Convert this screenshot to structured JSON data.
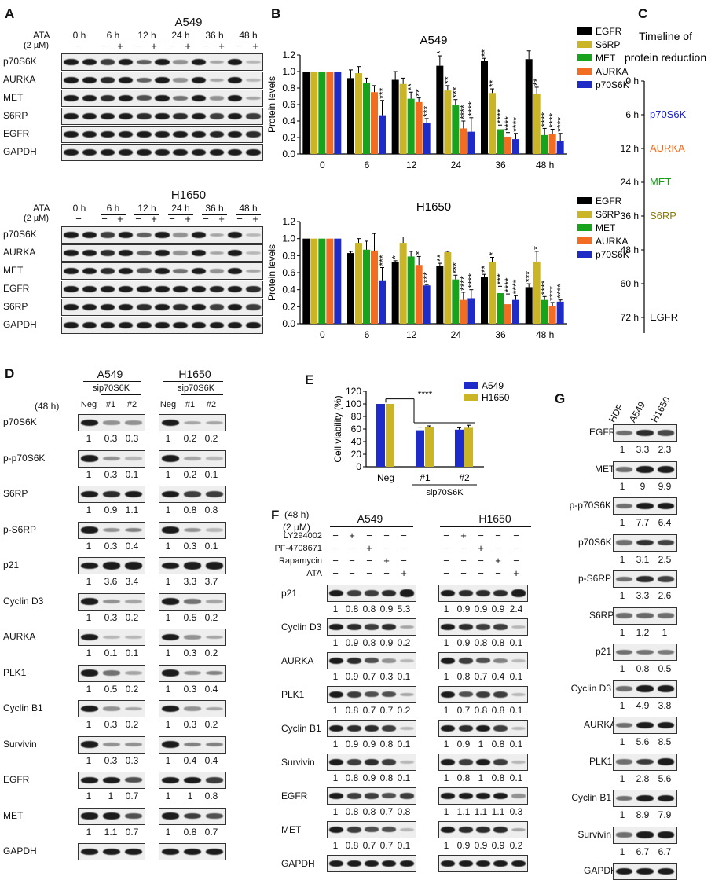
{
  "panels": {
    "A": "A",
    "B": "B",
    "C": "C",
    "D": "D",
    "E": "E",
    "F": "F",
    "G": "G"
  },
  "panel_a": {
    "ata_label": "ATA",
    "ata_dose": "(2 µM)",
    "timepoints": [
      "0 h",
      "6 h",
      "12 h",
      "24 h",
      "36 h",
      "48 h"
    ],
    "minus": "−",
    "plus": "+",
    "a549": {
      "title": "A549",
      "proteins": [
        "p70S6K",
        "AURKA",
        "MET",
        "S6RP",
        "EGFR",
        "GAPDH"
      ]
    },
    "h1650": {
      "title": "H1650",
      "proteins": [
        "p70S6K",
        "AURKA",
        "MET",
        "EGFR",
        "S6RP",
        "GAPDH"
      ]
    }
  },
  "panel_c": {
    "title_line1": "Timeline of",
    "title_line2": "protein reduction",
    "ticks": [
      "0 h",
      "6 h",
      "12 h",
      "24 h",
      "36 h",
      "48 h",
      "60 h",
      "72 h"
    ],
    "events": [
      {
        "tick": 1,
        "label": "p70S6K",
        "color": "#1a22c9"
      },
      {
        "tick": 2,
        "label": "AURKA",
        "color": "#ee6a1a"
      },
      {
        "tick": 3,
        "label": "MET",
        "color": "#16a016"
      },
      {
        "tick": 4,
        "label": "S6RP",
        "color": "#8a7a10"
      },
      {
        "tick": 7,
        "label": "EGFR",
        "color": "#111111"
      }
    ]
  },
  "chart_data": [
    {
      "type": "bar",
      "title": "A549",
      "ylabel": "Protein levels",
      "ylim": [
        0,
        1.2
      ],
      "yticks": [
        "0.0",
        "0.2",
        "0.4",
        "0.6",
        "0.8",
        "1.0",
        "1.2"
      ],
      "categories": [
        "0",
        "6",
        "12",
        "24",
        "36",
        "48 h"
      ],
      "series": [
        {
          "name": "EGFR",
          "color": "#000000",
          "values": [
            1.0,
            0.92,
            0.9,
            1.07,
            1.13,
            1.15
          ],
          "err": [
            0,
            0.1,
            0.1,
            0.12,
            0.03,
            0.1
          ],
          "sig": [
            "",
            "",
            "",
            "*",
            "**",
            ""
          ]
        },
        {
          "name": "S6RP",
          "color": "#c9b526",
          "values": [
            1.0,
            0.98,
            0.85,
            0.77,
            0.74,
            0.73
          ],
          "err": [
            0,
            0.08,
            0.07,
            0.06,
            0.05,
            0.08
          ],
          "sig": [
            "",
            "",
            "",
            "**",
            "**",
            "**"
          ]
        },
        {
          "name": "MET",
          "color": "#17a31b",
          "values": [
            1.0,
            0.86,
            0.67,
            0.59,
            0.3,
            0.23
          ],
          "err": [
            0,
            0.06,
            0.08,
            0.07,
            0.05,
            0.08
          ],
          "sig": [
            "",
            "",
            "**",
            "***",
            "****",
            "****"
          ]
        },
        {
          "name": "AURKA",
          "color": "#f26d21",
          "values": [
            1.0,
            0.75,
            0.63,
            0.31,
            0.21,
            0.24
          ],
          "err": [
            0,
            0.08,
            0.05,
            0.09,
            0.05,
            0.06
          ],
          "sig": [
            "",
            "",
            "**",
            "****",
            "****",
            "****"
          ]
        },
        {
          "name": "p70S6K",
          "color": "#1f2bc6",
          "values": [
            1.0,
            0.47,
            0.38,
            0.27,
            0.18,
            0.16
          ],
          "err": [
            0,
            0.18,
            0.05,
            0.17,
            0.07,
            0.09
          ],
          "sig": [
            "",
            "***",
            "***",
            "****",
            "****",
            "****"
          ]
        }
      ]
    },
    {
      "type": "bar",
      "title": "H1650",
      "ylabel": "Protein levels",
      "ylim": [
        0,
        1.2
      ],
      "yticks": [
        "0.0",
        "0.2",
        "0.4",
        "0.6",
        "0.8",
        "1.0",
        "1.2"
      ],
      "categories": [
        "0",
        "6",
        "12",
        "24",
        "36",
        "48 h"
      ],
      "series": [
        {
          "name": "EGFR",
          "color": "#000000",
          "values": [
            1.0,
            0.83,
            0.72,
            0.68,
            0.55,
            0.43
          ],
          "err": [
            0,
            0.02,
            0.02,
            0.03,
            0.03,
            0.04
          ],
          "sig": [
            "",
            "",
            "*",
            "**",
            "**",
            "***"
          ]
        },
        {
          "name": "S6RP",
          "color": "#c9b526",
          "values": [
            1.0,
            0.95,
            0.95,
            0.84,
            0.72,
            0.73
          ],
          "err": [
            0,
            0.05,
            0.07,
            0.01,
            0.06,
            0.12
          ],
          "sig": [
            "",
            "",
            "",
            "",
            "*",
            "*"
          ]
        },
        {
          "name": "MET",
          "color": "#17a31b",
          "values": [
            1.0,
            0.87,
            0.79,
            0.52,
            0.36,
            0.28
          ],
          "err": [
            0,
            0.1,
            0.06,
            0.05,
            0.08,
            0.04
          ],
          "sig": [
            "",
            "",
            "",
            "***",
            "***",
            "****"
          ]
        },
        {
          "name": "AURKA",
          "color": "#f26d21",
          "values": [
            1.0,
            0.86,
            0.69,
            0.28,
            0.23,
            0.21
          ],
          "err": [
            0,
            0.2,
            0.1,
            0.09,
            0.12,
            0.04
          ],
          "sig": [
            "",
            "",
            "*",
            "****",
            "****",
            "****"
          ]
        },
        {
          "name": "p70S6K",
          "color": "#1f2bc6",
          "values": [
            1.0,
            0.51,
            0.45,
            0.3,
            0.28,
            0.26
          ],
          "err": [
            0,
            0.15,
            0.01,
            0.1,
            0.05,
            0.02
          ],
          "sig": [
            "",
            "***",
            "***",
            "****",
            "****",
            "****"
          ]
        }
      ]
    },
    {
      "type": "bar",
      "title": "",
      "ylabel": "Cell viability (%)",
      "ylim": [
        0,
        120
      ],
      "yticks": [
        "0",
        "20",
        "40",
        "60",
        "80",
        "100",
        "120"
      ],
      "categories": [
        "Neg",
        "#1",
        "#2"
      ],
      "group_label": "sip70S6K",
      "sig": "****",
      "series": [
        {
          "name": "A549",
          "color": "#1f2bc6",
          "values": [
            100,
            58,
            59
          ],
          "err": [
            0,
            5,
            3
          ]
        },
        {
          "name": "H1650",
          "color": "#c9b526",
          "values": [
            100,
            63,
            62
          ],
          "err": [
            0,
            2,
            4
          ]
        }
      ]
    }
  ],
  "panel_d": {
    "time": "(48 h)",
    "a549": "A549",
    "h1650": "H1650",
    "si": "sip70S6K",
    "lanes": [
      "Neg",
      "#1",
      "#2"
    ],
    "rows": [
      {
        "name": "p70S6K",
        "a": [
          "1",
          "0.3",
          "0.3"
        ],
        "h": [
          "1",
          "0.2",
          "0.2"
        ]
      },
      {
        "name": "p-p70S6K",
        "a": [
          "1",
          "0.3",
          "0.1"
        ],
        "h": [
          "1",
          "0.2",
          "0.1"
        ]
      },
      {
        "name": "S6RP",
        "a": [
          "1",
          "0.9",
          "1.1"
        ],
        "h": [
          "1",
          "0.8",
          "0.8"
        ]
      },
      {
        "name": "p-S6RP",
        "a": [
          "1",
          "0.3",
          "0.4"
        ],
        "h": [
          "1",
          "0.3",
          "0.1"
        ]
      },
      {
        "name": "p21",
        "a": [
          "1",
          "3.6",
          "3.4"
        ],
        "h": [
          "1",
          "3.3",
          "3.7"
        ]
      },
      {
        "name": "Cyclin D3",
        "a": [
          "1",
          "0.3",
          "0.2"
        ],
        "h": [
          "1",
          "0.5",
          "0.2"
        ]
      },
      {
        "name": "AURKA",
        "a": [
          "1",
          "0.1",
          "0.1"
        ],
        "h": [
          "1",
          "0.3",
          "0.2"
        ]
      },
      {
        "name": "PLK1",
        "a": [
          "1",
          "0.5",
          "0.2"
        ],
        "h": [
          "1",
          "0.3",
          "0.4"
        ]
      },
      {
        "name": "Cyclin B1",
        "a": [
          "1",
          "0.3",
          "0.2"
        ],
        "h": [
          "1",
          "0.3",
          "0.2"
        ]
      },
      {
        "name": "Survivin",
        "a": [
          "1",
          "0.3",
          "0.3"
        ],
        "h": [
          "1",
          "0.4",
          "0.4"
        ]
      },
      {
        "name": "EGFR",
        "a": [
          "1",
          "1",
          "0.7"
        ],
        "h": [
          "1",
          "1",
          "0.8"
        ]
      },
      {
        "name": "MET",
        "a": [
          "1",
          "1.1",
          "0.7"
        ],
        "h": [
          "1",
          "0.8",
          "0.7"
        ]
      },
      {
        "name": "GAPDH",
        "a": [],
        "h": []
      }
    ]
  },
  "panel_f": {
    "time": "(48 h)",
    "dose": "(2 µM)",
    "a549": "A549",
    "h1650": "H1650",
    "treatments": [
      "LY294002",
      "PF-4708671",
      "Rapamycin",
      "ATA"
    ],
    "rows": [
      {
        "name": "p21",
        "a": [
          "1",
          "0.8",
          "0.8",
          "0.9",
          "5.3"
        ],
        "h": [
          "1",
          "0.9",
          "0.9",
          "0.9",
          "2.4"
        ]
      },
      {
        "name": "Cyclin D3",
        "a": [
          "1",
          "0.9",
          "0.8",
          "0.9",
          "0.2"
        ],
        "h": [
          "1",
          "0.9",
          "0.8",
          "0.8",
          "0.1"
        ]
      },
      {
        "name": "AURKA",
        "a": [
          "1",
          "0.9",
          "0.7",
          "0.3",
          "0.1"
        ],
        "h": [
          "1",
          "0.8",
          "0.7",
          "0.4",
          "0.1"
        ]
      },
      {
        "name": "PLK1",
        "a": [
          "1",
          "0.8",
          "0.7",
          "0.7",
          "0.2"
        ],
        "h": [
          "1",
          "0.7",
          "0.8",
          "0.8",
          "0.1"
        ]
      },
      {
        "name": "Cyclin B1",
        "a": [
          "1",
          "0.9",
          "0.9",
          "0.8",
          "0.1"
        ],
        "h": [
          "1",
          "0.9",
          "1",
          "0.8",
          "0.1"
        ]
      },
      {
        "name": "Survivin",
        "a": [
          "1",
          "0.8",
          "0.9",
          "0.8",
          "0.1"
        ],
        "h": [
          "1",
          "0.8",
          "1",
          "0.8",
          "0.1"
        ]
      },
      {
        "name": "EGFR",
        "a": [
          "1",
          "0.8",
          "0.8",
          "0.7",
          "0.8"
        ],
        "h": [
          "1",
          "1.1",
          "1.1",
          "1.1",
          "0.3"
        ]
      },
      {
        "name": "MET",
        "a": [
          "1",
          "0.8",
          "0.7",
          "0.7",
          "0.1"
        ],
        "h": [
          "1",
          "0.9",
          "0.9",
          "0.9",
          "0.2"
        ]
      },
      {
        "name": "GAPDH",
        "a": [],
        "h": []
      }
    ]
  },
  "panel_g": {
    "cols": [
      "HDF",
      "A549",
      "H1650"
    ],
    "rows": [
      {
        "name": "EGFR",
        "v": [
          "1",
          "3.3",
          "2.3"
        ]
      },
      {
        "name": "MET",
        "v": [
          "1",
          "9",
          "9.9"
        ]
      },
      {
        "name": "p-p70S6K",
        "v": [
          "1",
          "7.7",
          "6.4"
        ]
      },
      {
        "name": "p70S6K",
        "v": [
          "1",
          "3.1",
          "2.5"
        ]
      },
      {
        "name": "p-S6RP",
        "v": [
          "1",
          "3.3",
          "2.6"
        ]
      },
      {
        "name": "S6RP",
        "v": [
          "1",
          "1.2",
          "1"
        ]
      },
      {
        "name": "p21",
        "v": [
          "1",
          "0.8",
          "0.5"
        ]
      },
      {
        "name": "Cyclin D3",
        "v": [
          "1",
          "4.9",
          "3.8"
        ]
      },
      {
        "name": "AURKA",
        "v": [
          "1",
          "5.6",
          "8.5"
        ]
      },
      {
        "name": "PLK1",
        "v": [
          "1",
          "2.8",
          "5.6"
        ]
      },
      {
        "name": "Cyclin B1",
        "v": [
          "1",
          "8.9",
          "7.9"
        ]
      },
      {
        "name": "Survivin",
        "v": [
          "1",
          "6.7",
          "6.7"
        ]
      },
      {
        "name": "GAPDH",
        "v": []
      }
    ]
  }
}
